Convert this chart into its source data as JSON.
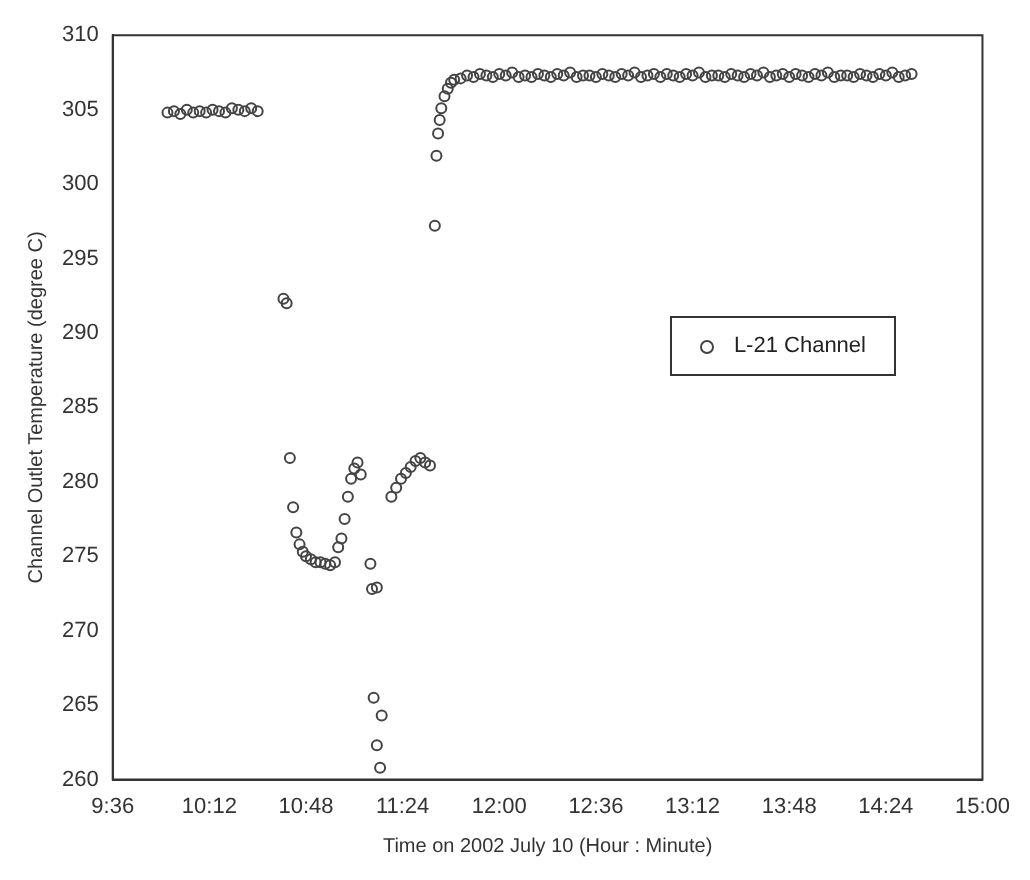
{
  "chart_data": {
    "type": "scatter",
    "xlabel": "Time on 2002 July 10 (Hour : Minute)",
    "ylabel": "Channel Outlet Temperature (degree C)",
    "xlim": [
      9.6,
      15
    ],
    "xticks": [
      {
        "value": 9.6,
        "label": "9:36"
      },
      {
        "value": 10.2,
        "label": "10:12"
      },
      {
        "value": 10.8,
        "label": "10:48"
      },
      {
        "value": 11.4,
        "label": "11:24"
      },
      {
        "value": 12,
        "label": "12:00"
      },
      {
        "value": 12.6,
        "label": "12:36"
      },
      {
        "value": 13.2,
        "label": "13:12"
      },
      {
        "value": 13.8,
        "label": "13:48"
      },
      {
        "value": 14.4,
        "label": "14:24"
      },
      {
        "value": 15,
        "label": "15:00"
      }
    ],
    "ylim": [
      260,
      310
    ],
    "yticks": [
      260,
      265,
      270,
      275,
      280,
      285,
      290,
      295,
      300,
      305,
      310
    ],
    "grid": false,
    "legend": "right",
    "marker": "circle",
    "series": [
      {
        "name": "L-21 Channel",
        "color": "#444444",
        "x": [
          9.94,
          9.98,
          10.02,
          10.06,
          10.1,
          10.14,
          10.18,
          10.22,
          10.26,
          10.3,
          10.34,
          10.38,
          10.42,
          10.46,
          10.5,
          10.66,
          10.68,
          10.7,
          10.72,
          10.74,
          10.76,
          10.78,
          10.8,
          10.83,
          10.86,
          10.89,
          10.92,
          10.95,
          10.98,
          11.0,
          11.02,
          11.04,
          11.06,
          11.08,
          11.1,
          11.12,
          11.14,
          11.2,
          11.21,
          11.24,
          11.22,
          11.27,
          11.24,
          11.26,
          11.33,
          11.36,
          11.39,
          11.42,
          11.45,
          11.48,
          11.51,
          11.54,
          11.57,
          11.6,
          11.61,
          11.62,
          11.63,
          11.64,
          11.66,
          11.68,
          11.7,
          11.72,
          11.76,
          11.8,
          11.84,
          11.88,
          11.92,
          11.96,
          12.0,
          12.04,
          12.08,
          12.12,
          12.16,
          12.2,
          12.24,
          12.28,
          12.32,
          12.36,
          12.4,
          12.44,
          12.48,
          12.52,
          12.56,
          12.6,
          12.64,
          12.68,
          12.72,
          12.76,
          12.8,
          12.84,
          12.88,
          12.92,
          12.96,
          13.0,
          13.04,
          13.08,
          13.12,
          13.16,
          13.2,
          13.24,
          13.28,
          13.32,
          13.36,
          13.4,
          13.44,
          13.48,
          13.52,
          13.56,
          13.6,
          13.64,
          13.68,
          13.72,
          13.76,
          13.8,
          13.84,
          13.88,
          13.92,
          13.96,
          14.0,
          14.04,
          14.08,
          14.12,
          14.16,
          14.2,
          14.24,
          14.28,
          14.32,
          14.36,
          14.4,
          14.44,
          14.48,
          14.52,
          14.56
        ],
        "values": [
          304.8,
          304.9,
          304.7,
          305.0,
          304.8,
          304.9,
          304.8,
          305.0,
          304.9,
          304.8,
          305.1,
          305.0,
          304.9,
          305.1,
          304.9,
          292.3,
          292.0,
          281.6,
          278.3,
          276.6,
          275.8,
          275.3,
          275.0,
          274.8,
          274.6,
          274.6,
          274.5,
          274.4,
          274.6,
          275.6,
          276.2,
          277.5,
          279.0,
          280.2,
          280.9,
          281.3,
          280.5,
          274.5,
          272.8,
          272.9,
          265.5,
          264.3,
          262.3,
          260.8,
          279.0,
          279.6,
          280.2,
          280.6,
          281.0,
          281.4,
          281.6,
          281.3,
          281.1,
          297.2,
          301.9,
          303.4,
          304.3,
          305.1,
          305.9,
          306.4,
          306.8,
          307.0,
          307.1,
          307.3,
          307.2,
          307.4,
          307.3,
          307.2,
          307.4,
          307.3,
          307.5,
          307.2,
          307.3,
          307.2,
          307.4,
          307.3,
          307.2,
          307.4,
          307.3,
          307.5,
          307.2,
          307.3,
          307.3,
          307.2,
          307.4,
          307.3,
          307.2,
          307.4,
          307.3,
          307.5,
          307.2,
          307.3,
          307.4,
          307.2,
          307.4,
          307.3,
          307.2,
          307.4,
          307.3,
          307.5,
          307.2,
          307.3,
          307.3,
          307.2,
          307.4,
          307.3,
          307.2,
          307.4,
          307.3,
          307.5,
          307.2,
          307.3,
          307.4,
          307.2,
          307.4,
          307.3,
          307.2,
          307.4,
          307.3,
          307.5,
          307.2,
          307.3,
          307.3,
          307.2,
          307.4,
          307.3,
          307.2,
          307.4,
          307.3,
          307.5,
          307.2,
          307.3,
          307.4
        ]
      }
    ]
  }
}
